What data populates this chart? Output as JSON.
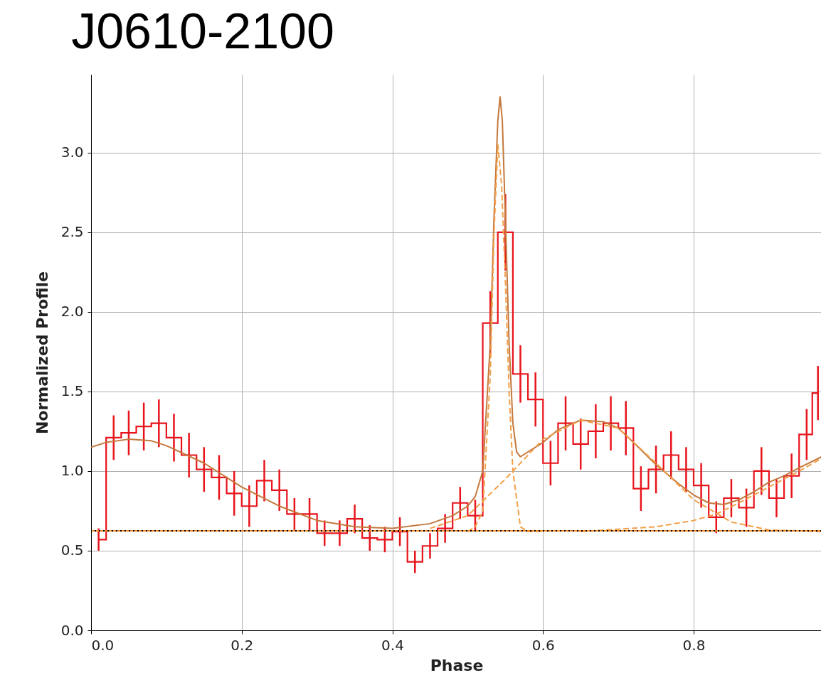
{
  "chart_data": {
    "type": "step",
    "title": "J0610-2100",
    "xlabel": "Phase",
    "ylabel": "Normalized Profile",
    "x": [
      0.01,
      0.03,
      0.05,
      0.07,
      0.09,
      0.11,
      0.13,
      0.15,
      0.17,
      0.19,
      0.21,
      0.23,
      0.25,
      0.27,
      0.29,
      0.31,
      0.33,
      0.35,
      0.37,
      0.39,
      0.41,
      0.43,
      0.45,
      0.47,
      0.49,
      0.51,
      0.53,
      0.55,
      0.57,
      0.59,
      0.61,
      0.63,
      0.65,
      0.67,
      0.69,
      0.71,
      0.73,
      0.75,
      0.77,
      0.79,
      0.81,
      0.83,
      0.85,
      0.87,
      0.89,
      0.91,
      0.93,
      0.95,
      0.965
    ],
    "values": [
      0.57,
      1.21,
      1.24,
      1.28,
      1.3,
      1.21,
      1.1,
      1.01,
      0.96,
      0.86,
      0.78,
      0.94,
      0.88,
      0.73,
      0.73,
      0.61,
      0.61,
      0.7,
      0.58,
      0.57,
      0.62,
      0.43,
      0.53,
      0.64,
      0.8,
      0.72,
      1.93,
      2.5,
      1.61,
      1.45,
      1.05,
      1.3,
      1.17,
      1.25,
      1.3,
      1.27,
      0.89,
      1.01,
      1.1,
      1.01,
      0.91,
      0.71,
      0.83,
      0.77,
      1.0,
      0.83,
      0.97,
      1.23,
      1.49
    ],
    "errors": [
      0.07,
      0.14,
      0.14,
      0.15,
      0.15,
      0.15,
      0.14,
      0.14,
      0.14,
      0.14,
      0.13,
      0.13,
      0.13,
      0.1,
      0.1,
      0.08,
      0.08,
      0.09,
      0.08,
      0.08,
      0.09,
      0.07,
      0.08,
      0.09,
      0.1,
      0.1,
      0.2,
      0.24,
      0.18,
      0.17,
      0.14,
      0.17,
      0.16,
      0.17,
      0.17,
      0.17,
      0.14,
      0.15,
      0.15,
      0.14,
      0.14,
      0.1,
      0.12,
      0.12,
      0.15,
      0.12,
      0.14,
      0.16,
      0.17
    ],
    "color": "#e8141c",
    "series": [
      {
        "type": "line",
        "color": "#c4783c",
        "line_style": "solid",
        "x": [
          0,
          0.02,
          0.05,
          0.08,
          0.1,
          0.15,
          0.2,
          0.25,
          0.3,
          0.35,
          0.4,
          0.45,
          0.48,
          0.5,
          0.51,
          0.52,
          0.53,
          0.535,
          0.54,
          0.543,
          0.546,
          0.55,
          0.555,
          0.56,
          0.565,
          0.57,
          0.6,
          0.62,
          0.65,
          0.68,
          0.7,
          0.72,
          0.75,
          0.78,
          0.8,
          0.82,
          0.84,
          0.86,
          0.88,
          0.9,
          0.92,
          0.94,
          0.97
        ],
        "values": [
          1.15,
          1.18,
          1.2,
          1.19,
          1.16,
          1.05,
          0.9,
          0.78,
          0.69,
          0.65,
          0.64,
          0.67,
          0.72,
          0.78,
          0.84,
          1.0,
          1.8,
          2.6,
          3.2,
          3.35,
          3.2,
          2.6,
          1.8,
          1.3,
          1.12,
          1.09,
          1.18,
          1.26,
          1.32,
          1.31,
          1.27,
          1.18,
          1.04,
          0.92,
          0.85,
          0.8,
          0.79,
          0.82,
          0.87,
          0.93,
          0.97,
          1.02,
          1.09
        ]
      },
      {
        "type": "line",
        "color": "#f2a04a",
        "line_style": "dashed",
        "x": [
          0.5,
          0.51,
          0.52,
          0.53,
          0.535,
          0.54,
          0.545,
          0.55,
          0.555,
          0.56,
          0.57,
          0.58,
          0.6
        ],
        "values": [
          0.62,
          0.65,
          0.75,
          1.6,
          2.5,
          3.05,
          2.8,
          2.2,
          1.5,
          1.0,
          0.65,
          0.62,
          0.62
        ]
      },
      {
        "type": "line",
        "color": "#f2a04a",
        "line_style": "dashed",
        "x": [
          0.45,
          0.5,
          0.55,
          0.6,
          0.65,
          0.7,
          0.75,
          0.8,
          0.85,
          0.9,
          0.97
        ],
        "values": [
          0.64,
          0.72,
          0.95,
          1.2,
          1.32,
          1.27,
          1.05,
          0.82,
          0.68,
          0.63,
          0.62
        ]
      },
      {
        "type": "line",
        "color": "#f2a04a",
        "line_style": "dashed",
        "x": [
          0.65,
          0.75,
          0.8,
          0.83,
          0.86,
          0.9,
          0.94,
          0.97
        ],
        "values": [
          0.62,
          0.65,
          0.69,
          0.73,
          0.8,
          0.9,
          1.0,
          1.08
        ]
      }
    ],
    "ref_lines": [
      {
        "axis": "y",
        "value": 0.625,
        "color": "#f28c28",
        "line_style": "solid"
      },
      {
        "axis": "y",
        "value": 0.625,
        "color": "#000000",
        "line_style": "dotted"
      }
    ],
    "xlim": [
      0,
      0.97
    ],
    "ylim": [
      0,
      3.49
    ],
    "xticks": [
      {
        "value": 0,
        "label": "0.0"
      },
      0.2,
      0.4,
      0.6,
      0.8
    ],
    "yticks": [
      {
        "value": 0,
        "label": "0.0"
      },
      0.5,
      {
        "value": 1,
        "label": "1.0"
      },
      1.5,
      {
        "value": 2,
        "label": "2.0"
      },
      2.5,
      {
        "value": 3,
        "label": "3.0"
      }
    ],
    "grid": true
  }
}
